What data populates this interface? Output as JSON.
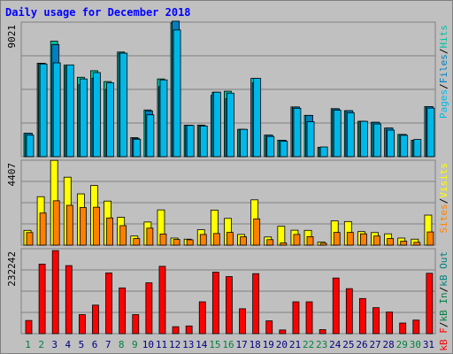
{
  "chart_data": [
    {
      "type": "bar",
      "title": "Daily usage for December 2018",
      "categories": [
        "1",
        "2",
        "3",
        "4",
        "5",
        "6",
        "7",
        "8",
        "9",
        "10",
        "11",
        "12",
        "13",
        "14",
        "15",
        "16",
        "17",
        "18",
        "19",
        "20",
        "21",
        "22",
        "23",
        "24",
        "25",
        "26",
        "27",
        "28",
        "29",
        "30",
        "31"
      ],
      "weekend_days": [
        "1",
        "2",
        "8",
        "9",
        "15",
        "16",
        "22",
        "23",
        "29",
        "30"
      ],
      "series": [
        {
          "name": "Pages",
          "color": "#00b8e8",
          "values": [
            1150,
            4960,
            5020,
            4910,
            4160,
            4500,
            3950,
            5540,
            930,
            2240,
            4110,
            6780,
            1670,
            1640,
            3450,
            3400,
            1460,
            4190,
            1080,
            820,
            2590,
            1870,
            520,
            2490,
            2350,
            1890,
            1750,
            1420,
            1140,
            920,
            2600
          ]
        },
        {
          "name": "Files",
          "color": "#0080c0",
          "values": [
            1250,
            4990,
            6000,
            4830,
            3850,
            4200,
            3600,
            5540,
            980,
            2450,
            3750,
            7250,
            1680,
            1650,
            3450,
            3100,
            1460,
            3950,
            1150,
            880,
            2660,
            2210,
            500,
            2560,
            2460,
            1890,
            1840,
            1530,
            1190,
            880,
            2680
          ]
        },
        {
          "name": "Hits",
          "color": "#00c0a0",
          "values": [
            1250,
            5000,
            6180,
            4900,
            4250,
            4600,
            4020,
            5600,
            1020,
            2500,
            4160,
            7160,
            1680,
            1690,
            3280,
            3500,
            1460,
            4190,
            1150,
            880,
            2660,
            2210,
            500,
            2570,
            2460,
            1890,
            1840,
            1530,
            1190,
            880,
            2680
          ]
        },
        {
          "name": "Visits",
          "color": "#ffff00",
          "values": [
            940,
            3080,
            5390,
            4320,
            3260,
            3790,
            2800,
            1770,
            580,
            1470,
            2240,
            450,
            380,
            980,
            2230,
            1700,
            680,
            2880,
            520,
            1200,
            950,
            940,
            200,
            1540,
            1500,
            860,
            800,
            720,
            450,
            380,
            1910
          ]
        },
        {
          "name": "Sites",
          "color": "#ff8000",
          "values": [
            800,
            2040,
            2820,
            2530,
            2390,
            2410,
            1730,
            1240,
            420,
            1080,
            710,
            360,
            340,
            680,
            740,
            810,
            530,
            1670,
            350,
            140,
            680,
            540,
            120,
            810,
            810,
            720,
            580,
            420,
            250,
            180,
            840
          ]
        },
        {
          "name": "kB In",
          "color": "#008040",
          "values": [
            0,
            0,
            0,
            0,
            0,
            0,
            0,
            0,
            0,
            0,
            0,
            0,
            0,
            0,
            0,
            0,
            0,
            0,
            0,
            0,
            0,
            0,
            0,
            0,
            0,
            0,
            0,
            0,
            0,
            0,
            0
          ]
        },
        {
          "name": "kB F",
          "color": "#ff0000",
          "values": [
            36000,
            190000,
            227000,
            186000,
            52000,
            78000,
            166000,
            125000,
            52000,
            139000,
            184000,
            19000,
            21000,
            87000,
            168000,
            156000,
            68000,
            164000,
            35000,
            10000,
            87000,
            87000,
            11000,
            152000,
            123000,
            96000,
            71000,
            59000,
            29000,
            37000,
            165000
          ]
        }
      ],
      "panels": [
        {
          "id": "top",
          "max_label": "9021",
          "legend": [
            {
              "text": "Pages",
              "color": "#00b8e8"
            },
            {
              "text": "/",
              "color": "#000000"
            },
            {
              "text": "Files",
              "color": "#0080c0"
            },
            {
              "text": "/",
              "color": "#000000"
            },
            {
              "text": "Hits",
              "color": "#00c0a0"
            }
          ]
        },
        {
          "id": "mid",
          "max_label": "4407",
          "legend": [
            {
              "text": "Sites",
              "color": "#ff8000"
            },
            {
              "text": "/",
              "color": "#000000"
            },
            {
              "text": "Visits",
              "color": "#ffff00"
            }
          ]
        },
        {
          "id": "bottom",
          "max_label": "232242",
          "legend": [
            {
              "text": "kB F",
              "color": "#ff0000"
            },
            {
              "text": "/",
              "color": "#000000"
            },
            {
              "text": "kB In",
              "color": "#008040"
            },
            {
              "text": "/",
              "color": "#000000"
            },
            {
              "text": "kB Out",
              "color": "#008080"
            }
          ]
        }
      ],
      "ylim": {
        "top": [
          0,
          7200
        ],
        "mid": [
          0,
          5400
        ],
        "bottom": [
          0,
          232242
        ]
      },
      "grid": true
    }
  ],
  "colors": {
    "background": "#c0c0c0",
    "panel_frame": "#808080",
    "title": "#0000ff",
    "weekday_label": "#000080",
    "weekend_label": "#008040"
  }
}
